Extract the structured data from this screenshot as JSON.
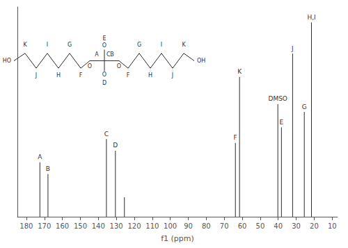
{
  "chart_data": {
    "type": "stem",
    "xlabel": "f1 (ppm)",
    "x": [
      172.5,
      168.0,
      135.5,
      130.5,
      125.5,
      63.8,
      61.5,
      40.2,
      38.2,
      32.0,
      25.5,
      21.5
    ],
    "values": [
      0.28,
      0.22,
      0.4,
      0.34,
      0.1,
      0.38,
      0.72,
      0.58,
      0.46,
      0.84,
      0.54,
      1.0
    ],
    "peak_labels": [
      "A",
      "B",
      "C",
      "D",
      null,
      "F",
      "K",
      "DMSO",
      "E",
      "J",
      "G",
      "H,I"
    ],
    "color": "#2a2a2a",
    "xlim": [
      185,
      7
    ],
    "ylim": [
      0,
      1.08
    ],
    "xticks": [
      180,
      170,
      160,
      150,
      140,
      130,
      120,
      110,
      100,
      90,
      80,
      70,
      60,
      50,
      40,
      30,
      20,
      10
    ],
    "yticks": [],
    "tick_labels": "x",
    "grid": false,
    "structure_labels": [
      "HO",
      "K",
      "J",
      "I",
      "H",
      "G",
      "F",
      "O",
      "A",
      "E",
      "O",
      "C",
      "D",
      "O",
      "B",
      "O",
      "F",
      "G",
      "H",
      "I",
      "J",
      "K",
      "OH"
    ]
  }
}
